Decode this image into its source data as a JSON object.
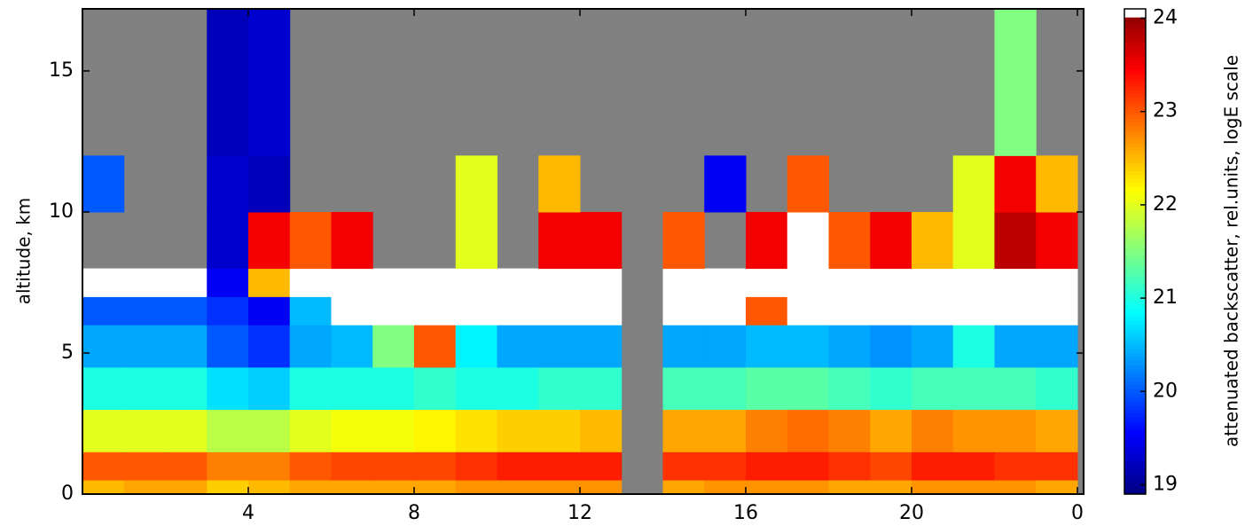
{
  "chart_data": {
    "type": "heatmap",
    "x_label": null,
    "y_label": "altitude, km",
    "colorbar_label": "attenuated backscatter, rel.units, logE scale",
    "colormap": "jet",
    "null_color": "#808080",
    "over_color": "#ffffff",
    "xlim": [
      0,
      24.15
    ],
    "ylim": [
      0,
      17.2
    ],
    "clim": [
      18.9,
      24.1
    ],
    "xticks": [
      4,
      8,
      12,
      16,
      20,
      {
        "value": 24,
        "label": "0"
      }
    ],
    "yticks": [
      0,
      5,
      10,
      15
    ],
    "cticks": [
      19,
      20,
      21,
      22,
      23,
      24
    ],
    "x_bins": [
      0,
      1,
      2,
      3,
      4,
      5,
      6,
      7,
      8,
      9,
      10,
      11,
      12,
      13,
      14,
      15,
      16,
      17,
      18,
      19,
      20,
      21,
      22,
      23,
      24
    ],
    "y_bins": [
      0,
      0.5,
      1.5,
      3,
      4.5,
      6,
      7,
      8,
      10,
      12,
      17.2
    ],
    "values": [
      [
        22.5,
        22.6,
        22.6,
        22.4,
        22.5,
        22.6,
        22.6,
        22.6,
        22.6,
        22.7,
        22.7,
        22.7,
        22.7,
        null,
        22.6,
        22.7,
        22.7,
        22.7,
        22.6,
        22.6,
        22.7,
        22.7,
        22.7,
        22.6
      ],
      [
        23.0,
        23.0,
        23.0,
        22.8,
        22.8,
        23.0,
        23.1,
        23.1,
        23.1,
        23.2,
        23.3,
        23.3,
        23.3,
        null,
        23.2,
        23.2,
        23.3,
        23.3,
        23.2,
        23.1,
        23.3,
        23.3,
        23.2,
        23.2
      ],
      [
        22.0,
        22.0,
        22.0,
        21.8,
        21.8,
        22.0,
        22.1,
        22.1,
        22.2,
        22.3,
        22.4,
        22.4,
        22.5,
        null,
        22.6,
        22.6,
        22.8,
        22.9,
        22.8,
        22.6,
        22.8,
        22.7,
        22.7,
        22.6
      ],
      [
        21.0,
        21.0,
        21.0,
        20.7,
        20.6,
        21.0,
        21.0,
        21.0,
        21.1,
        21.0,
        21.0,
        21.1,
        21.1,
        null,
        21.2,
        21.2,
        21.3,
        21.3,
        21.2,
        21.1,
        21.2,
        21.2,
        21.2,
        21.1
      ],
      [
        20.4,
        20.4,
        20.4,
        20.0,
        19.8,
        20.4,
        20.5,
        21.5,
        23.0,
        20.8,
        20.4,
        20.4,
        20.4,
        null,
        20.4,
        20.4,
        20.5,
        20.5,
        20.4,
        20.3,
        20.4,
        21.0,
        20.4,
        20.4
      ],
      [
        20.0,
        20.0,
        20.0,
        19.8,
        19.5,
        20.5,
        24.5,
        24.5,
        24.5,
        24.5,
        24.5,
        24.5,
        24.5,
        null,
        24.5,
        24.5,
        23.0,
        24.5,
        24.5,
        24.5,
        24.5,
        24.5,
        24.5,
        24.5
      ],
      [
        24.5,
        24.5,
        24.5,
        19.5,
        22.5,
        24.5,
        24.5,
        24.5,
        24.5,
        24.5,
        24.5,
        24.5,
        24.5,
        null,
        24.5,
        24.5,
        24.5,
        24.5,
        24.5,
        24.5,
        24.5,
        24.5,
        24.5,
        24.5
      ],
      [
        null,
        null,
        null,
        19.3,
        23.5,
        23.0,
        23.5,
        null,
        null,
        22.0,
        null,
        23.5,
        23.5,
        null,
        23.0,
        null,
        23.5,
        24.5,
        23.0,
        23.5,
        22.5,
        22.0,
        23.8,
        23.5
      ],
      [
        20.0,
        null,
        null,
        19.3,
        19.2,
        null,
        null,
        null,
        null,
        22.0,
        null,
        22.5,
        null,
        null,
        null,
        19.5,
        null,
        23.0,
        null,
        null,
        null,
        22.0,
        23.5,
        22.5
      ],
      [
        null,
        null,
        null,
        19.2,
        19.3,
        null,
        null,
        null,
        null,
        null,
        null,
        null,
        null,
        null,
        null,
        null,
        null,
        null,
        null,
        null,
        null,
        null,
        21.5,
        null
      ]
    ]
  }
}
